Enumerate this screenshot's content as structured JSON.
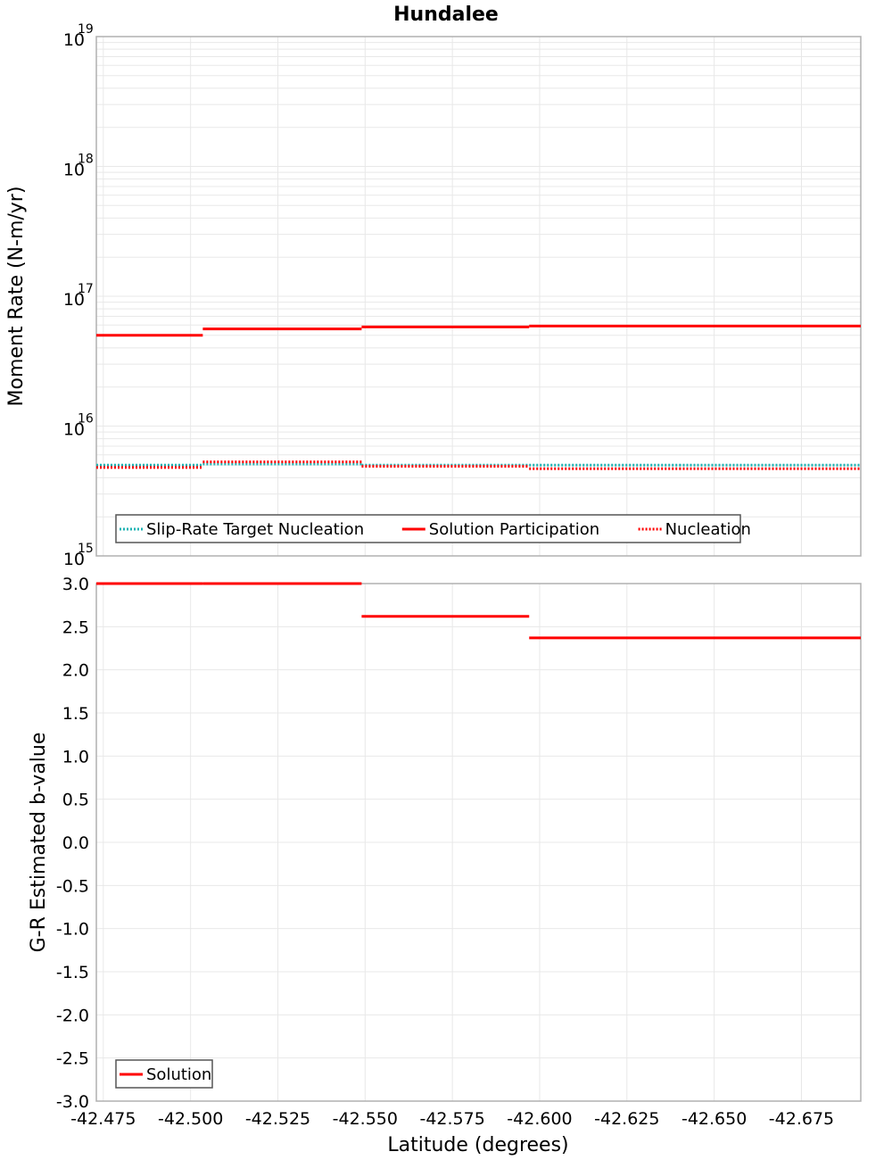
{
  "title": "Hundalee",
  "colors": {
    "solution": "#ff0000",
    "target": "#1fb4b4",
    "nucleation": "#ff0000",
    "grid": "#e8e8e8",
    "frame": "#b0b0b0"
  },
  "top_panel": {
    "ylabel": "Moment Rate (N-m/yr)",
    "y_ticks": [
      {
        "base": "10",
        "exp": "19"
      },
      {
        "base": "10",
        "exp": "18"
      },
      {
        "base": "10",
        "exp": "17"
      },
      {
        "base": "10",
        "exp": "16"
      },
      {
        "base": "10",
        "exp": "15"
      }
    ],
    "legend": [
      {
        "label": "Slip-Rate Target Nucleation",
        "style": "dotted",
        "color": "#1fb4b4"
      },
      {
        "label": "Solution Participation",
        "style": "solid",
        "color": "#ff0000"
      },
      {
        "label": "Nucleation",
        "style": "dotted",
        "color": "#ff0000"
      }
    ]
  },
  "bottom_panel": {
    "ylabel": "G-R Estimated b-value",
    "y_ticks": [
      "3.0",
      "2.5",
      "2.0",
      "1.5",
      "1.0",
      "0.5",
      "0.0",
      "-0.5",
      "-1.0",
      "-1.5",
      "-2.0",
      "-2.5",
      "-3.0"
    ],
    "legend": [
      {
        "label": "Solution",
        "style": "solid",
        "color": "#ff0000"
      }
    ]
  },
  "xaxis": {
    "label": "Latitude (degrees)",
    "ticks": [
      "-42.475",
      "-42.500",
      "-42.525",
      "-42.550",
      "-42.575",
      "-42.600",
      "-42.625",
      "-42.650",
      "-42.675"
    ]
  },
  "chart_data": [
    {
      "type": "line",
      "title": "Hundalee",
      "xlabel": "Latitude (degrees)",
      "ylabel": "Moment Rate (N-m/yr)",
      "yscale": "log",
      "ylim": [
        1000000000000000.0,
        1e+19
      ],
      "xlim": [
        -42.473,
        -42.692
      ],
      "legend_position": "lower left",
      "grid": true,
      "x_segments": [
        [
          -42.473,
          -42.5035
        ],
        [
          -42.5035,
          -42.549
        ],
        [
          -42.549,
          -42.597
        ],
        [
          -42.597,
          -42.64
        ],
        [
          -42.64,
          -42.692
        ]
      ],
      "series": [
        {
          "name": "Slip-Rate Target Nucleation",
          "style": "dotted",
          "color": "#1fb4b4",
          "values": [
            5000000000000000.0,
            5100000000000000.0,
            5000000000000000.0,
            5000000000000000.0,
            5000000000000000.0
          ]
        },
        {
          "name": "Solution Participation",
          "style": "solid",
          "color": "#ff0000",
          "values": [
            5e+16,
            5.6e+16,
            5.8e+16,
            5.9e+16,
            5.9e+16
          ]
        },
        {
          "name": "Nucleation",
          "style": "dotted",
          "color": "#ff0000",
          "values": [
            4800000000000000.0,
            5300000000000000.0,
            4900000000000000.0,
            4700000000000000.0,
            4700000000000000.0
          ]
        }
      ]
    },
    {
      "type": "line",
      "xlabel": "Latitude (degrees)",
      "ylabel": "G-R Estimated b-value",
      "ylim": [
        -3.0,
        3.0
      ],
      "xlim": [
        -42.473,
        -42.692
      ],
      "legend_position": "lower left",
      "grid": true,
      "x_segments": [
        [
          -42.473,
          -42.5035
        ],
        [
          -42.5035,
          -42.549
        ],
        [
          -42.549,
          -42.597
        ],
        [
          -42.597,
          -42.64
        ],
        [
          -42.64,
          -42.692
        ]
      ],
      "series": [
        {
          "name": "Solution",
          "style": "solid",
          "color": "#ff0000",
          "values": [
            3.0,
            3.0,
            2.62,
            2.37,
            2.37
          ]
        }
      ]
    }
  ]
}
